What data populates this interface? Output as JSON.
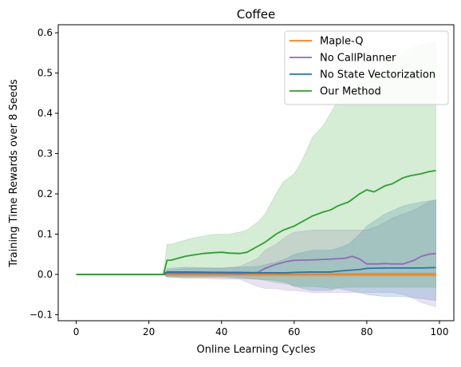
{
  "chart_data": {
    "type": "line",
    "title": "Coffee",
    "xlabel": "Online Learning Cycles",
    "ylabel": "Training Time Rewards over 8 Seeds",
    "xlim": [
      -4.95,
      103.95
    ],
    "ylim": [
      -0.115,
      0.62
    ],
    "xticks": [
      0,
      20,
      40,
      60,
      80,
      100
    ],
    "yticks": [
      -0.1,
      0.0,
      0.1,
      0.2,
      0.3,
      0.4,
      0.5,
      0.6
    ],
    "ytick_labels": [
      "−0.1",
      "0.0",
      "0.1",
      "0.2",
      "0.3",
      "0.4",
      "0.5",
      "0.6"
    ],
    "grid": false,
    "legend_position": "upper right",
    "series": [
      {
        "name": "Maple-Q",
        "color": "#ff7f0e",
        "x": [
          0,
          24,
          25,
          30,
          40,
          50,
          60,
          70,
          80,
          90,
          99
        ],
        "mean": [
          0,
          0,
          0,
          0,
          0,
          0,
          0,
          0,
          0,
          0,
          0
        ],
        "lower": [
          0,
          0,
          -0.004,
          -0.004,
          -0.004,
          -0.004,
          -0.004,
          -0.004,
          -0.004,
          -0.004,
          -0.004
        ],
        "upper": [
          0,
          0,
          0.004,
          0.004,
          0.004,
          0.004,
          0.004,
          0.004,
          0.004,
          0.004,
          0.004
        ]
      },
      {
        "name": "No CallPlanner",
        "color": "#9467bd",
        "x": [
          0,
          24,
          25,
          30,
          35,
          40,
          45,
          50,
          52,
          55,
          58,
          60,
          65,
          70,
          74,
          76,
          78,
          80,
          83,
          85,
          87,
          90,
          93,
          95,
          97,
          99
        ],
        "mean": [
          0,
          0,
          0.003,
          0.003,
          0.003,
          0.003,
          0.002,
          0.005,
          0.015,
          0.025,
          0.032,
          0.035,
          0.036,
          0.038,
          0.04,
          0.045,
          0.038,
          0.026,
          0.026,
          0.027,
          0.026,
          0.026,
          0.035,
          0.045,
          0.05,
          0.052
        ],
        "lower": [
          0,
          0,
          -0.005,
          -0.01,
          -0.01,
          -0.012,
          -0.012,
          -0.03,
          -0.035,
          -0.035,
          -0.04,
          -0.04,
          -0.045,
          -0.045,
          -0.045,
          -0.045,
          -0.045,
          -0.045,
          -0.045,
          -0.045,
          -0.045,
          -0.05,
          -0.06,
          -0.07,
          -0.075,
          -0.08
        ],
        "upper": [
          0,
          0,
          0.01,
          0.015,
          0.015,
          0.015,
          0.02,
          0.04,
          0.06,
          0.075,
          0.095,
          0.105,
          0.11,
          0.11,
          0.11,
          0.11,
          0.11,
          0.11,
          0.12,
          0.13,
          0.14,
          0.15,
          0.16,
          0.17,
          0.18,
          0.185
        ]
      },
      {
        "name": "No State Vectorization",
        "color": "#1f77b4",
        "x": [
          0,
          24,
          25,
          30,
          40,
          45,
          50,
          55,
          58,
          60,
          65,
          70,
          72,
          75,
          78,
          80,
          85,
          90,
          95,
          99
        ],
        "mean": [
          0,
          0,
          0.006,
          0.006,
          0.005,
          0.005,
          0.004,
          0.004,
          0.004,
          0.005,
          0.006,
          0.006,
          0.008,
          0.01,
          0.012,
          0.015,
          0.016,
          0.016,
          0.016,
          0.017
        ],
        "lower": [
          0,
          0,
          -0.008,
          -0.008,
          -0.008,
          -0.01,
          -0.012,
          -0.015,
          -0.02,
          -0.03,
          -0.04,
          -0.04,
          -0.035,
          -0.04,
          -0.045,
          -0.05,
          -0.055,
          -0.055,
          -0.06,
          -0.065
        ],
        "upper": [
          0,
          0,
          0.015,
          0.018,
          0.016,
          0.018,
          0.02,
          0.03,
          0.04,
          0.05,
          0.06,
          0.06,
          0.065,
          0.075,
          0.1,
          0.12,
          0.15,
          0.17,
          0.18,
          0.185
        ]
      },
      {
        "name": "Our Method",
        "color": "#2ca02c",
        "x": [
          0,
          24,
          25,
          26,
          28,
          30,
          32,
          35,
          38,
          40,
          42,
          45,
          47,
          50,
          52,
          55,
          57,
          60,
          62,
          65,
          68,
          70,
          72,
          75,
          78,
          80,
          82,
          85,
          87,
          90,
          92,
          95,
          97,
          99
        ],
        "mean": [
          0,
          0,
          0.035,
          0.035,
          0.04,
          0.045,
          0.048,
          0.052,
          0.054,
          0.055,
          0.053,
          0.052,
          0.055,
          0.07,
          0.08,
          0.1,
          0.11,
          0.12,
          0.13,
          0.145,
          0.155,
          0.16,
          0.17,
          0.18,
          0.2,
          0.21,
          0.205,
          0.22,
          0.225,
          0.24,
          0.245,
          0.25,
          0.255,
          0.258
        ],
        "lower": [
          0,
          0,
          -0.005,
          -0.005,
          -0.005,
          -0.005,
          -0.005,
          -0.005,
          -0.005,
          -0.005,
          -0.006,
          -0.008,
          -0.01,
          -0.012,
          -0.015,
          -0.02,
          -0.022,
          -0.028,
          -0.03,
          -0.03,
          -0.032,
          -0.035,
          -0.033,
          -0.032,
          -0.032,
          -0.032,
          -0.032,
          -0.032,
          -0.032,
          -0.032,
          -0.032,
          -0.032,
          -0.032,
          -0.032
        ],
        "upper": [
          0,
          0,
          0.075,
          0.075,
          0.08,
          0.085,
          0.09,
          0.095,
          0.1,
          0.1,
          0.1,
          0.105,
          0.11,
          0.13,
          0.15,
          0.2,
          0.23,
          0.25,
          0.28,
          0.34,
          0.37,
          0.4,
          0.43,
          0.45,
          0.47,
          0.49,
          0.5,
          0.52,
          0.53,
          0.55,
          0.56,
          0.57,
          0.575,
          0.575
        ]
      }
    ]
  }
}
